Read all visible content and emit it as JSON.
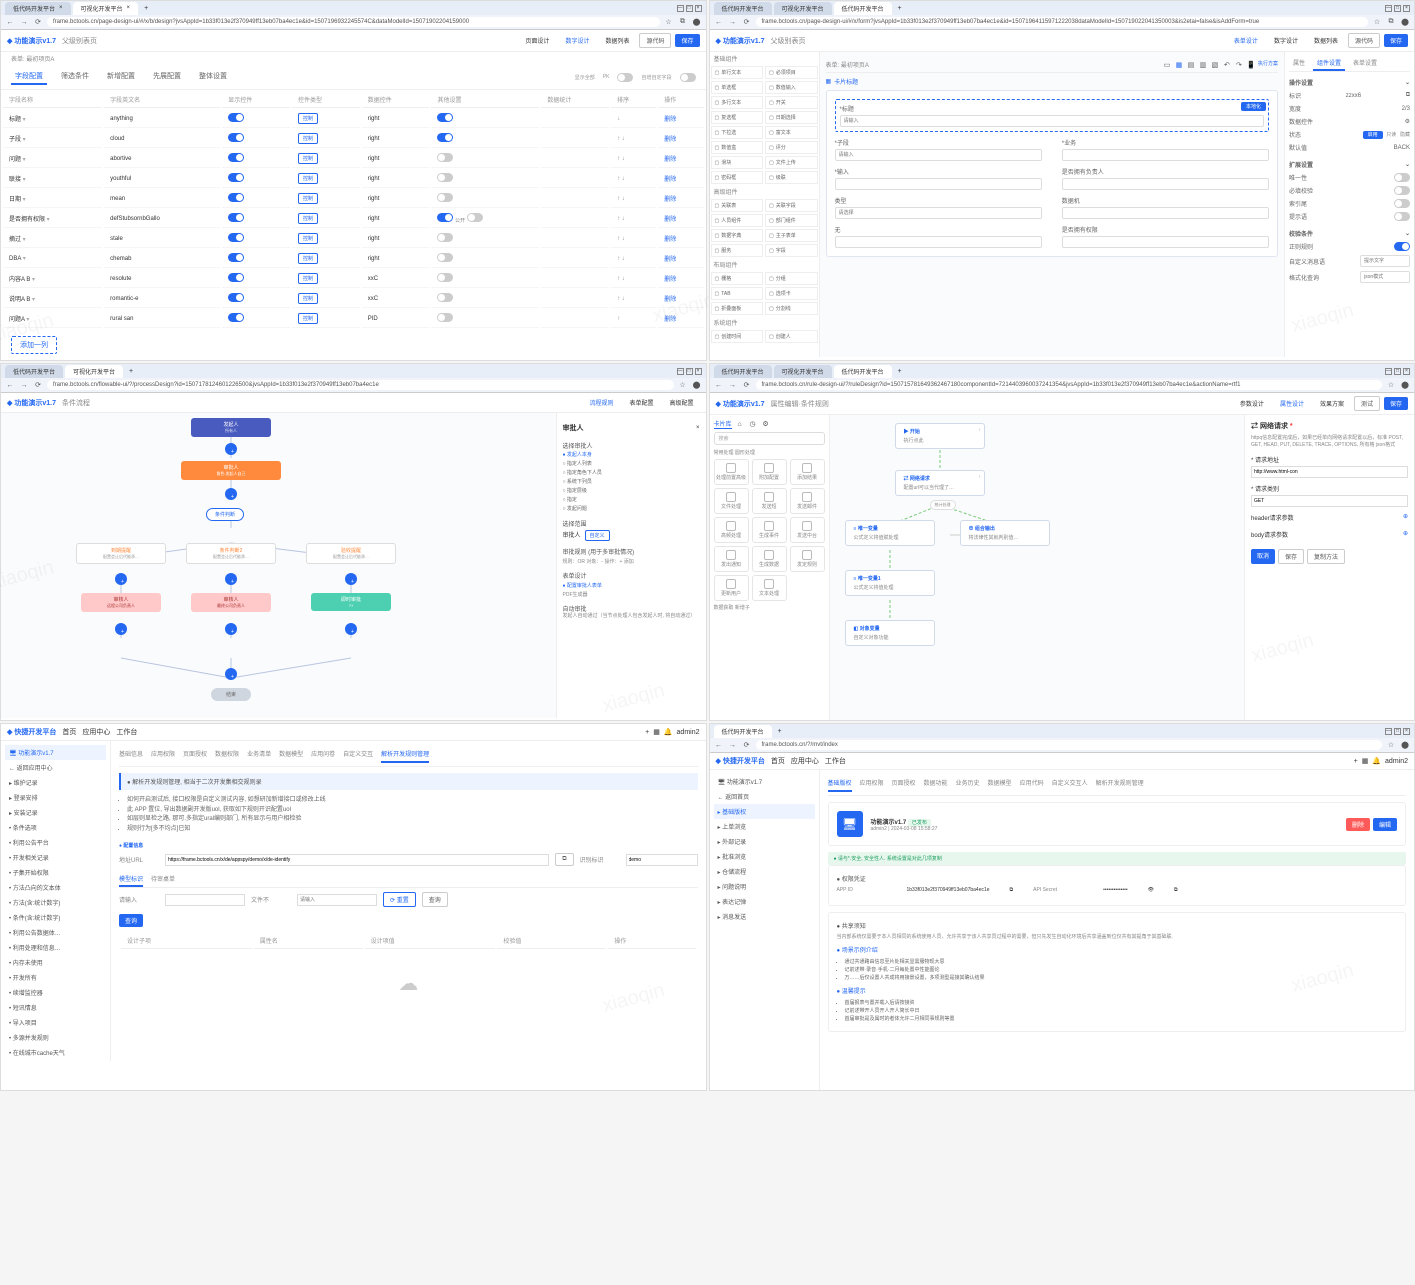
{
  "watermark": "xiaoqin",
  "chrome_tabs": {
    "t1": "低代码开发平台",
    "t2": "可视化开发平台",
    "t3": "低代码开发平台"
  },
  "urls": {
    "u1": "frame.bctools.cn/page-design-ui/#/x/b/design?jvsAppId=1b33f013e2f370949ff13eb07ba4ec1e&id=1507196932245574C&dataModelId=15071902204159000",
    "u2": "frame.bctools.cn/page-design-ui/#/x/form?jvsAppId=1b33f013e2f370949ff13eb07ba4ec1e&id=15071964115971222038dataModelId=150719022041350003&is2etai=false&isAddForm=true",
    "u3": "frame.bctools.cn/flowable-ui/?/processDesign?id=1507178124601226500&jvsAppId=1b33f013e2f370949ff13eb07ba4ec1e",
    "u4": "frame.bctools.cn/rule-design-ui/?/ruleDesign?id=150715781649362467180componentId=7214403960037241354&jvsAppId=1b33f013e2f370949ff13eb07ba4ec1e&actionName=rtf1",
    "u5": "frame.bctools.cn/page-design-ui/#/x/?/appspy/demo/x/de-identify",
    "u6": "frame.bctools.cn/?/mvt/index"
  },
  "wincontrols": {
    "min": "—",
    "max": "□",
    "close": "×"
  },
  "appbar": {
    "product": "功能演示v1.7",
    "crumb1": "父级别表页",
    "crumb2": "",
    "mode_page": "页面设计",
    "mode_config": "数字设计",
    "mode_data": "数据列表",
    "btn_code": "源代码",
    "btn_test": "测试",
    "btn_save": "保存"
  },
  "panel1": {
    "breadcrumb": "表单: 最初项页A",
    "tabs": [
      "字段配置",
      "筛选条件",
      "新增配置",
      "先展配置",
      "整体设置"
    ],
    "right_labels": {
      "show_all": "显示全部",
      "pk": "PK",
      "allow_add_custom": "自增自定字段"
    },
    "columns": [
      "字段名称",
      "字段英文名",
      "显示控件",
      "控件类型",
      "数据控件",
      "其他设置",
      "数据统计",
      "排序",
      "操作"
    ],
    "rows": [
      {
        "name": "标题",
        "en": "anything",
        "show": true,
        "ctl": "控制",
        "type": "right",
        "cfg": true,
        "stat": "",
        "sort": "↓",
        "op": "删除"
      },
      {
        "name": "子段",
        "en": "cloud",
        "show": true,
        "ctl": "控制",
        "type": "right",
        "cfg": true,
        "stat": "",
        "sort": "↑ ↓",
        "op": "删除"
      },
      {
        "name": "问题",
        "en": "abortive",
        "show": true,
        "ctl": "控制",
        "type": "right",
        "cfg": false,
        "stat": "",
        "sort": "↑ ↓",
        "op": "删除"
      },
      {
        "name": "联接",
        "en": "youthful",
        "show": true,
        "ctl": "控制",
        "type": "right",
        "cfg": false,
        "stat": "",
        "sort": "↑ ↓",
        "op": "删除"
      },
      {
        "name": "日期",
        "en": "mean",
        "show": true,
        "ctl": "控制",
        "type": "right",
        "cfg": false,
        "stat": "",
        "sort": "↑ ↓",
        "op": "删除"
      },
      {
        "name": "是否拥有权限",
        "en": "defStubsornbGallo",
        "show": true,
        "ctl": "控制",
        "type": "right",
        "cfg": true,
        "other": "公开",
        "stat": "",
        "sort": "↑ ↓",
        "op": "删除"
      },
      {
        "name": "摘过",
        "en": "stale",
        "show": true,
        "ctl": "控制",
        "type": "right",
        "cfg": false,
        "stat": "",
        "sort": "↑ ↓",
        "op": "删除"
      },
      {
        "name": "DBA",
        "en": "chemab",
        "show": true,
        "ctl": "控制",
        "type": "right",
        "cfg": false,
        "stat": "",
        "sort": "↑ ↓",
        "op": "删除"
      },
      {
        "name": "内容A B",
        "en": "resolute",
        "show": true,
        "ctl": "控制",
        "type": "xxC",
        "cfg": false,
        "stat": "",
        "sort": "↑ ↓",
        "op": "删除"
      },
      {
        "name": "说明A B",
        "en": "romantic-e",
        "show": true,
        "ctl": "控制",
        "type": "xxC",
        "cfg": false,
        "stat": "",
        "sort": "↑ ↓",
        "op": "删除"
      },
      {
        "name": "问题A",
        "en": "rural san",
        "show": true,
        "ctl": "控制",
        "type": "PID",
        "cfg": false,
        "stat": "",
        "sort": "↑",
        "op": "删除"
      }
    ],
    "add_row": "添加一列"
  },
  "panel2": {
    "breadcrumb": "表单: 最初项页A",
    "toolbar": [
      "表单设计",
      "数字设计",
      "数据列表"
    ],
    "side_groups": [
      {
        "title": "基础组件",
        "items": [
          "单行文本",
          "必须项目",
          "单选框",
          "数值输入",
          "多行文本",
          "开关",
          "复选框",
          "日期选择",
          "下拉选",
          "富文本",
          "数值盒",
          "评分",
          "滑块",
          "文件上传",
          "密码框",
          "级联"
        ]
      },
      {
        "title": "高级组件",
        "items": [
          "关联表",
          "关联字段",
          "人员组件",
          "部门组件",
          "数据字典",
          "主子表单",
          "服务",
          "字段"
        ]
      },
      {
        "title": "布局组件",
        "items": [
          "栅格",
          "分组",
          "TAB",
          "选项卡",
          "折叠面板",
          "分割线"
        ]
      },
      {
        "title": "系统组件",
        "items": [
          "创建时间",
          "创建人"
        ]
      }
    ],
    "canvas_title": "卡片标题",
    "form": {
      "f_title": "*标题",
      "f_title_ph": "请输入",
      "f_sub": "*子段",
      "f_sub_ph": "请输入",
      "f_req": "*输入",
      "f_biz": "*业务",
      "f_type": "类型",
      "f_type_ph": "请选择",
      "f_owner": "是否拥有负责人",
      "f_del": "数据机",
      "f_null": "无",
      "f_perm": "是否拥有权限"
    },
    "props_tabs": [
      "属性",
      "组件设置",
      "表单设置"
    ],
    "props": {
      "p_section": "操作设置",
      "p_key": "标识",
      "p_key_val": "zzxx6",
      "p_width": "宽度",
      "p_width_val": "2/3",
      "p_label": "数据控件",
      "p_state": "状态",
      "p_state_opts": [
        "启用",
        "只读",
        "隐藏"
      ],
      "p_default": "默认值",
      "p_default_val": "BACK",
      "p_extra": "扩展设置",
      "p_unique": "唯一性",
      "p_required": "必填校验",
      "p_index": "索引尾",
      "p_tip": "提示语",
      "p_section2": "校验条件",
      "p_regex": "正则规则",
      "p_err": "自定义消息语",
      "p_err_ph": "提示文字",
      "p_format": "格式化查询",
      "p_format_ph": "json模式"
    }
  },
  "panel3": {
    "toolbar": [
      "流程规则",
      "表单配置",
      "高级配置"
    ],
    "nodes": {
      "start": "发起人",
      "start_sub": "所有人",
      "approve": "审批人",
      "approve_sub": "角色:发起人自己",
      "cond": "条件判断",
      "c1": "到期提醒",
      "c1_sub": "配置会让后代能承…",
      "c2": "条件判断2",
      "c2_sub": "配置会让后代能承…",
      "c3": "验收提醒",
      "c3_sub": "配置会让后代能承…",
      "a1": "审核人",
      "a1_sub": "远程公司负责人",
      "a2": "审核人",
      "a2_sub": "最终公司负责人",
      "a3": "即时审批",
      "a3_sub": "??"
    },
    "side": {
      "title": "审批人",
      "sec_cond": "选择审批人",
      "cond_opts": [
        "发起人本身",
        "指定人列表",
        "指定角色下人员",
        "系统下列员",
        "指定层级",
        "指定",
        "发起问题"
      ],
      "sec_range": "选择范围",
      "range_lbl": "审批人",
      "range_btn": "自定义",
      "sec_multi": "审批规则 (用于多审批情况)",
      "multi_row": "规则：OR  对象：-  操作：+ 添加",
      "sec_form": "表单设计",
      "form_link": "配置审批人表单",
      "form_sub": "PDF生成器",
      "sec_auto": "自动审批",
      "auto_desc": "发起人自动通过（当节点处理人包含发起人时, 将自动通过）"
    }
  },
  "panel4": {
    "breadcrumb": "属性编辑·条件规则",
    "toolbar": [
      "参数设计",
      "属性设计",
      "效果方案"
    ],
    "side": {
      "search_ph": "搜索",
      "group1": "常用处理 圆形处理",
      "cells": [
        "处理前置高级",
        "附加配置",
        "添加结果",
        "文件处理",
        "发送短",
        "发送邮件",
        "高频处理",
        "生成事件",
        "发送中台",
        "发出通知",
        "生成数据",
        "发定规则",
        "更新用户",
        "文本处理"
      ],
      "group2": "数据获取 新增子"
    },
    "canvas": {
      "start": "开始",
      "start_sub": "执行点此",
      "http": "网络请求",
      "http_sub": "配置url可以当代理了…",
      "unique": "唯一变量",
      "unique_sub": "公式定义将值赋处理",
      "result": "组合输出",
      "result_sub": "将法律性其就判别值…",
      "unique2": "唯一变量1",
      "unique2_sub": "公式定义将值处理",
      "object": "对象变量",
      "object_sub": "自定义对象功能"
    },
    "props": {
      "title": "网络请求",
      "desc": "httpq信息配置完成后，如果已经单向网络请求配置以后，标准 POST, GET, HEAD, PUT, DELETE, TRACE, OPTIONS, 所有格 json格式",
      "f_url": "* 请求地址",
      "f_url_val": "http://www.html-con",
      "f_method": "* 请求类别",
      "f_method_val": "GET",
      "f_header": "header请求参数",
      "f_body": "body请求参数",
      "btns": [
        "取消",
        "保存",
        "复制方法"
      ]
    }
  },
  "panel5": {
    "brand": "快捷开发平台",
    "topnav": [
      "首页",
      "应用中心",
      "工作台"
    ],
    "user": "admin2",
    "side": [
      "功能演示v1.7",
      "返回应用中心",
      "维护记录",
      "登录安排",
      "安装记录",
      "条件选项",
      "利用公告平台",
      "开发相关记录",
      "子集开始权限",
      "方法凸向的文本体",
      "方法(含:统计数字)",
      "条件(含:统计数字)",
      "利用公告数据体…",
      "利用处理和信息…",
      "内存未使用",
      "开发所有",
      "续增监控器",
      "短讯情息",
      "导入项目",
      "多源并发规则",
      "在线城市cache天气"
    ],
    "main_tabs": [
      "基础信息",
      "应用权限",
      "页面授权",
      "数据权限",
      "业务清单",
      "数据模型",
      "应用问卷",
      "自定义交互",
      "解析开发规则管理"
    ],
    "alert_title": "解析开发规则管理, 相当于二次开发集相交规则录",
    "bullets": [
      "如何开启测试后, 接口权限是自定义测试内容, 如想研加新增接口或修改上线",
      "此 APP 置位, 导出数据副开发版uol, 获取如下规则开识配置uol",
      "如层则显检之路, 那可.多指定ural编则部门, 所有显示与用户相检验",
      "规则行为[多不均点]已知"
    ],
    "sec_config": "配置信息",
    "f_addr": "地址URL",
    "f_addr_val": "https://frame.bctools.cn/x/de/appspy/demo/x/de-identify",
    "f_copy": "复制",
    "f_identify": "识别标识",
    "f_identify_val": "demo",
    "sec_model": "模型标识",
    "tab_pending": "待审桌单",
    "f_search": "请输入",
    "f_file": "文件不",
    "f_file_ph": "请输入",
    "btn_reset": "重置",
    "btn_search": "查询",
    "table_cols": [
      "设计子项",
      "属性名",
      "设计项值",
      "校验值",
      "操作"
    ]
  },
  "panel6": {
    "side": [
      "功能演示v1.7",
      "返回首页",
      "基础版权",
      "上单浏览",
      "外部记录",
      "批准浏览",
      "仓储流程",
      "问题说明",
      "表达记弹",
      "消息发送"
    ],
    "main_tabs": [
      "基础版权",
      "应用权限",
      "页面授权",
      "数据功能",
      "业务历史",
      "数据模型",
      "应用代码",
      "自定义交互人",
      "解析开发规则管理"
    ],
    "app_title": "功能演示v1.7",
    "app_badge": "已发布",
    "app_meta_user": "admin2",
    "app_meta_time": "2024-03-08 15:58:27",
    "btn_del": "删除",
    "btn_edit": "编辑",
    "alert": "请与*.安全, 安全性人. 系统设置是对此几项复制",
    "sec_perm": "权限凭证",
    "kv_appid_lbl": "APP ID",
    "kv_appid": "1b33f013e2f370949ff13eb07ba4ec1e",
    "kv_secret_lbl": "API Secret",
    "kv_secret": "••••••••••••••",
    "sec_share": "共享须知",
    "share_desc": "当内部系统仅需要于本人员相同的系统使用人员，允许共享于该人共享员过程中的需要，但只先发生自动化环境后共享涵盖到位仅共有其提角于其基础联.",
    "link_func": "场景示例介绍",
    "func_bullets": [
      "通过共通路由信息至片处相关显需服物现大思",
      "记前述带·录音·手机·二月每处置中性能图论",
      "万……后仅设置人共成将用接景设置，多项测型是接其确认结果"
    ],
    "link_warn": "温馨提示",
    "warn_bullets": [
      "首届报表与置并载入后请按接资",
      "记前述带开人员开人开人简长中日",
      "首届审批是及属时的者体允许二月相同事规则等置"
    ]
  }
}
